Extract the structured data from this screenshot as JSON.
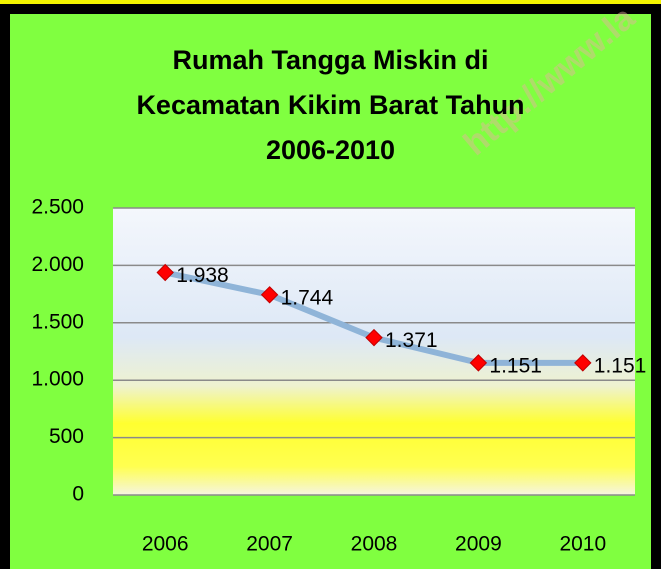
{
  "chart_data": {
    "type": "line",
    "title": "Rumah Tangga Miskin di Kecamatan Kikim Barat Tahun 2006-2010",
    "annotation": "http://www.la",
    "categories": [
      "2006",
      "2007",
      "2008",
      "2009",
      "2010"
    ],
    "series": [
      {
        "name": "Rumah Tangga Miskin",
        "color": "#8fb4d8",
        "marker_color": "#ff0000",
        "values": [
          1938,
          1744,
          1371,
          1151,
          1151
        ],
        "value_labels": [
          "1.938",
          "1.744",
          "1.371",
          "1.151",
          "1.151"
        ]
      }
    ],
    "ylim": [
      0,
      2500
    ],
    "yticks": [
      0,
      500,
      {
        "value": 1000,
        "label": "1.000"
      },
      {
        "value": 1500,
        "label": "1.500"
      },
      {
        "value": 2000,
        "label": "2.000"
      },
      {
        "value": 2500,
        "label": "2.500"
      }
    ],
    "grid": true
  }
}
